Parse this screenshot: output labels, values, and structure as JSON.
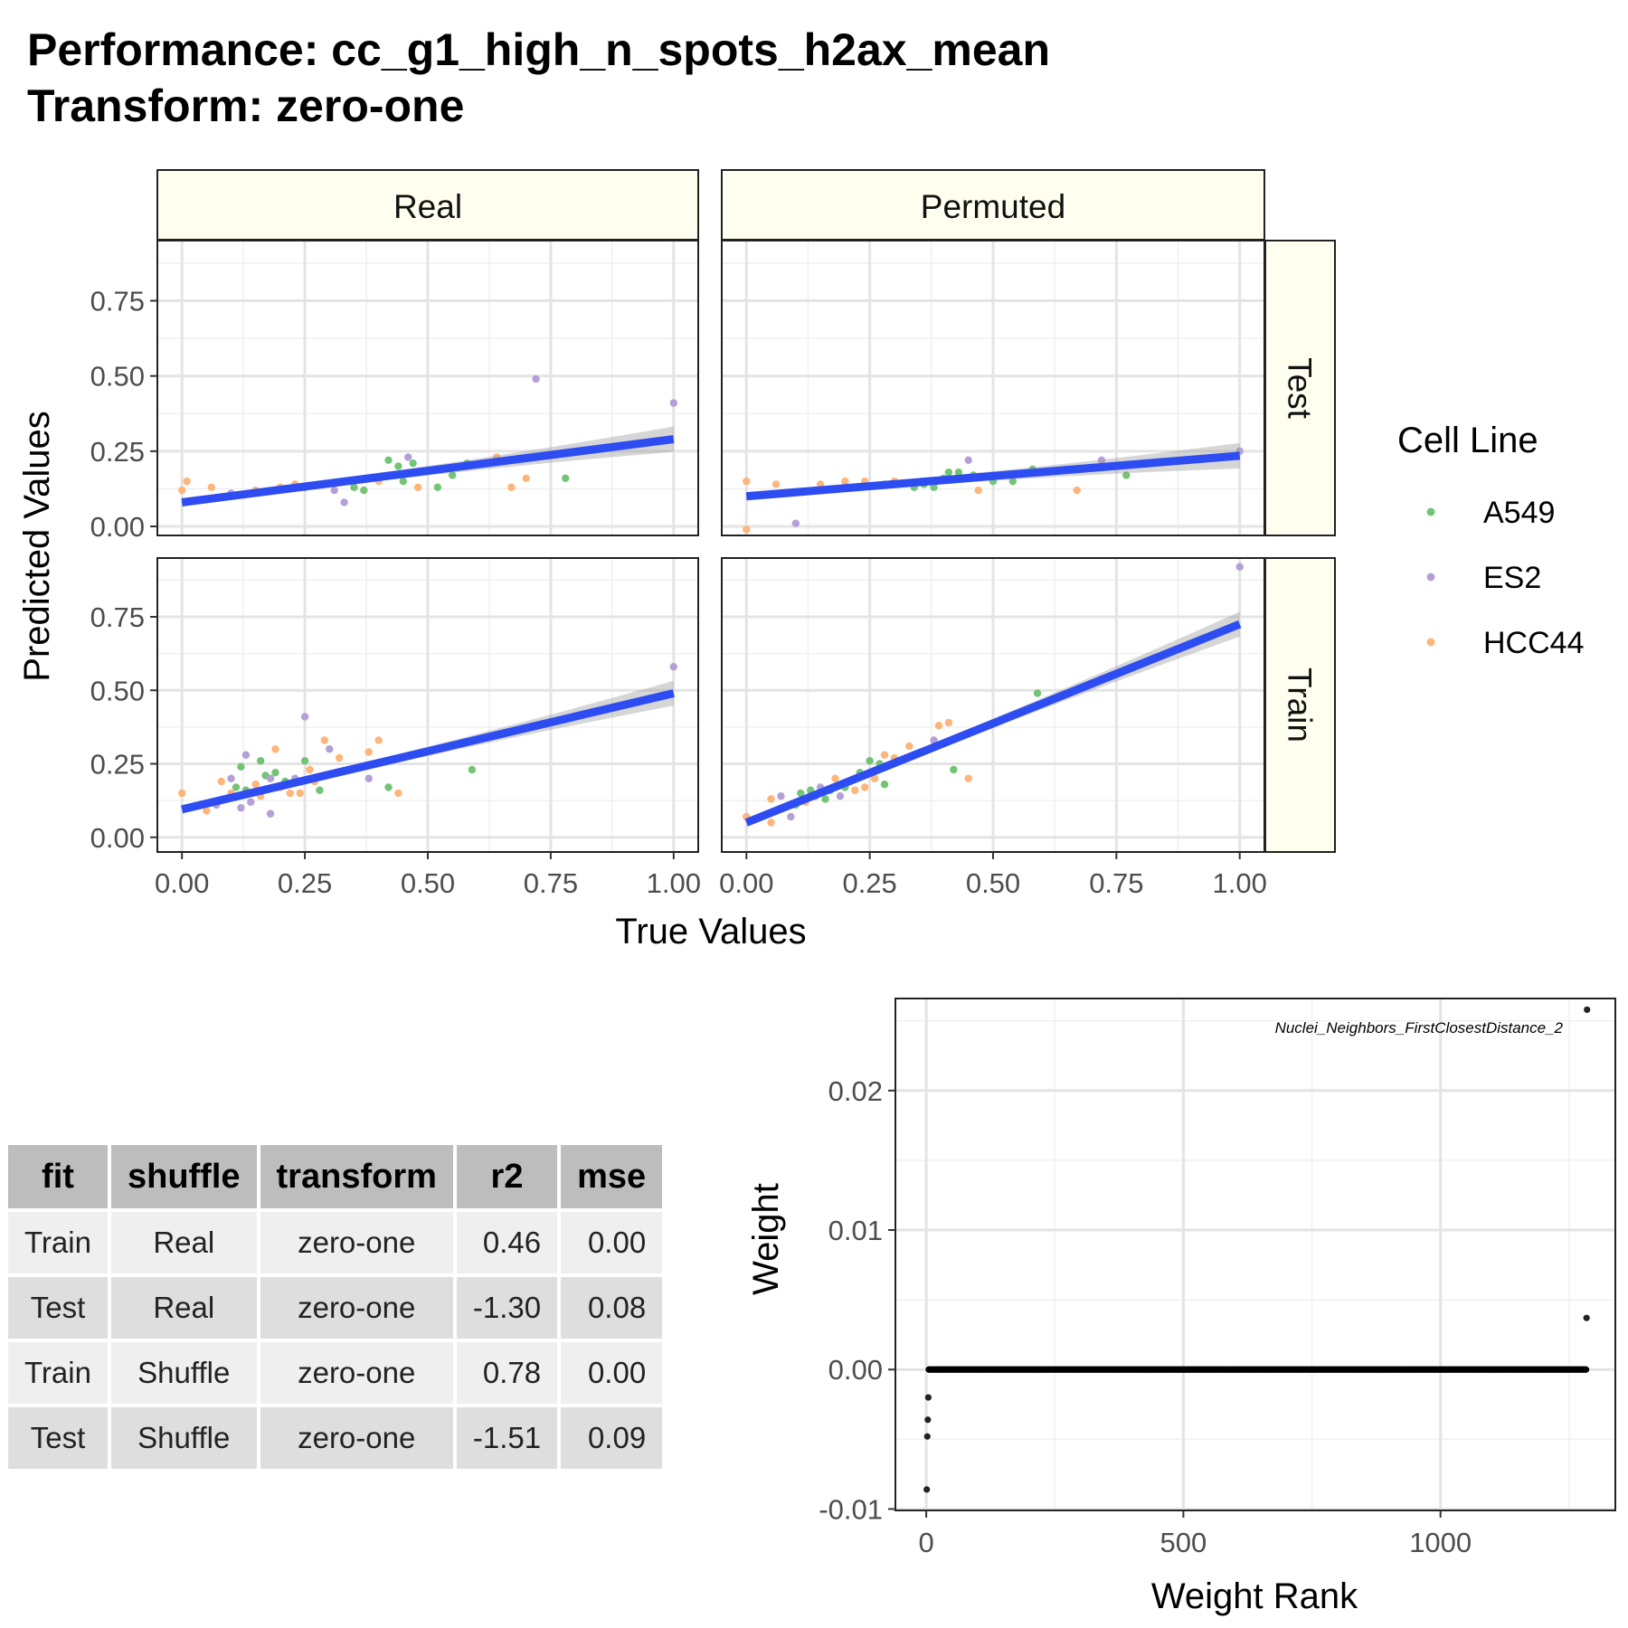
{
  "chart_data": [
    {
      "type": "scatter",
      "title": "Performance: cc_g1_high_n_spots_h2ax_mean",
      "subtitle": "Transform: zero-one",
      "xlabel": "True Values",
      "ylabel": "Predicted Values",
      "facet_columns": [
        "Real",
        "Permuted"
      ],
      "facet_rows": [
        "Test",
        "Train"
      ],
      "xlim": [
        -0.05,
        1.05
      ],
      "ylim_test": [
        -0.03,
        0.95
      ],
      "ylim_train": [
        -0.05,
        0.95
      ],
      "x_ticks": [
        "0.00",
        "0.25",
        "0.50",
        "0.75",
        "1.00"
      ],
      "y_ticks": [
        "0.00",
        "0.25",
        "0.50",
        "0.75"
      ],
      "legend": {
        "title": "Cell Line",
        "position": "right",
        "entries": [
          {
            "name": "A549",
            "color": "#74c476"
          },
          {
            "name": "ES2",
            "color": "#b4a0d6"
          },
          {
            "name": "HCC44",
            "color": "#fdb57a"
          }
        ]
      },
      "fit_line_color": "#2d4cf2",
      "grid": true,
      "panels": [
        {
          "col": "Real",
          "row": "Test",
          "fit": {
            "x": [
              0.0,
              1.0
            ],
            "y": [
              0.08,
              0.29
            ]
          },
          "points": [
            [
              0.0,
              0.12,
              "HCC44"
            ],
            [
              0.01,
              0.15,
              "HCC44"
            ],
            [
              0.06,
              0.13,
              "HCC44"
            ],
            [
              0.1,
              0.11,
              "ES2"
            ],
            [
              0.15,
              0.12,
              "HCC44"
            ],
            [
              0.2,
              0.13,
              "HCC44"
            ],
            [
              0.23,
              0.14,
              "HCC44"
            ],
            [
              0.25,
              0.13,
              "A549"
            ],
            [
              0.28,
              0.14,
              "HCC44"
            ],
            [
              0.31,
              0.12,
              "ES2"
            ],
            [
              0.33,
              0.08,
              "ES2"
            ],
            [
              0.35,
              0.13,
              "A549"
            ],
            [
              0.37,
              0.12,
              "A549"
            ],
            [
              0.4,
              0.15,
              "HCC44"
            ],
            [
              0.42,
              0.22,
              "A549"
            ],
            [
              0.44,
              0.2,
              "A549"
            ],
            [
              0.45,
              0.15,
              "A549"
            ],
            [
              0.46,
              0.23,
              "ES2"
            ],
            [
              0.47,
              0.21,
              "A549"
            ],
            [
              0.48,
              0.13,
              "HCC44"
            ],
            [
              0.52,
              0.13,
              "A549"
            ],
            [
              0.55,
              0.17,
              "A549"
            ],
            [
              0.58,
              0.21,
              "A549"
            ],
            [
              0.64,
              0.23,
              "HCC44"
            ],
            [
              0.67,
              0.13,
              "HCC44"
            ],
            [
              0.7,
              0.16,
              "HCC44"
            ],
            [
              0.72,
              0.49,
              "ES2"
            ],
            [
              0.78,
              0.16,
              "A549"
            ],
            [
              1.0,
              0.41,
              "ES2"
            ]
          ]
        },
        {
          "col": "Permuted",
          "row": "Test",
          "fit": {
            "x": [
              0.0,
              1.0
            ],
            "y": [
              0.1,
              0.235
            ]
          },
          "points": [
            [
              0.0,
              -0.01,
              "HCC44"
            ],
            [
              0.0,
              0.15,
              "HCC44"
            ],
            [
              0.06,
              0.14,
              "HCC44"
            ],
            [
              0.1,
              0.01,
              "ES2"
            ],
            [
              0.15,
              0.14,
              "HCC44"
            ],
            [
              0.2,
              0.15,
              "HCC44"
            ],
            [
              0.24,
              0.15,
              "HCC44"
            ],
            [
              0.28,
              0.14,
              "A549"
            ],
            [
              0.3,
              0.15,
              "HCC44"
            ],
            [
              0.34,
              0.13,
              "A549"
            ],
            [
              0.36,
              0.14,
              "A549"
            ],
            [
              0.38,
              0.13,
              "A549"
            ],
            [
              0.4,
              0.16,
              "A549"
            ],
            [
              0.41,
              0.18,
              "A549"
            ],
            [
              0.43,
              0.18,
              "A549"
            ],
            [
              0.45,
              0.22,
              "ES2"
            ],
            [
              0.46,
              0.17,
              "A549"
            ],
            [
              0.47,
              0.12,
              "HCC44"
            ],
            [
              0.5,
              0.15,
              "A549"
            ],
            [
              0.54,
              0.15,
              "A549"
            ],
            [
              0.58,
              0.19,
              "A549"
            ],
            [
              0.65,
              0.19,
              "HCC44"
            ],
            [
              0.67,
              0.12,
              "HCC44"
            ],
            [
              0.72,
              0.22,
              "ES2"
            ],
            [
              0.77,
              0.17,
              "A549"
            ],
            [
              1.0,
              0.25,
              "ES2"
            ]
          ]
        },
        {
          "col": "Real",
          "row": "Train",
          "fit": {
            "x": [
              0.0,
              1.0
            ],
            "y": [
              0.095,
              0.49
            ]
          },
          "points": [
            [
              0.0,
              0.15,
              "HCC44"
            ],
            [
              0.05,
              0.09,
              "HCC44"
            ],
            [
              0.07,
              0.11,
              "ES2"
            ],
            [
              0.08,
              0.19,
              "HCC44"
            ],
            [
              0.09,
              0.13,
              "HCC44"
            ],
            [
              0.1,
              0.15,
              "HCC44"
            ],
            [
              0.1,
              0.2,
              "ES2"
            ],
            [
              0.11,
              0.17,
              "A549"
            ],
            [
              0.12,
              0.24,
              "A549"
            ],
            [
              0.12,
              0.1,
              "ES2"
            ],
            [
              0.13,
              0.28,
              "ES2"
            ],
            [
              0.13,
              0.16,
              "A549"
            ],
            [
              0.14,
              0.12,
              "ES2"
            ],
            [
              0.15,
              0.18,
              "HCC44"
            ],
            [
              0.16,
              0.26,
              "A549"
            ],
            [
              0.16,
              0.14,
              "HCC44"
            ],
            [
              0.17,
              0.21,
              "A549"
            ],
            [
              0.18,
              0.08,
              "ES2"
            ],
            [
              0.18,
              0.2,
              "ES2"
            ],
            [
              0.19,
              0.22,
              "A549"
            ],
            [
              0.19,
              0.3,
              "HCC44"
            ],
            [
              0.2,
              0.17,
              "HCC44"
            ],
            [
              0.21,
              0.19,
              "A549"
            ],
            [
              0.22,
              0.15,
              "HCC44"
            ],
            [
              0.23,
              0.2,
              "ES2"
            ],
            [
              0.24,
              0.15,
              "HCC44"
            ],
            [
              0.25,
              0.26,
              "A549"
            ],
            [
              0.25,
              0.41,
              "ES2"
            ],
            [
              0.26,
              0.23,
              "HCC44"
            ],
            [
              0.27,
              0.19,
              "HCC44"
            ],
            [
              0.28,
              0.16,
              "A549"
            ],
            [
              0.29,
              0.33,
              "HCC44"
            ],
            [
              0.3,
              0.3,
              "ES2"
            ],
            [
              0.32,
              0.27,
              "HCC44"
            ],
            [
              0.38,
              0.2,
              "ES2"
            ],
            [
              0.38,
              0.29,
              "HCC44"
            ],
            [
              0.4,
              0.33,
              "HCC44"
            ],
            [
              0.42,
              0.17,
              "A549"
            ],
            [
              0.44,
              0.15,
              "HCC44"
            ],
            [
              0.59,
              0.23,
              "A549"
            ],
            [
              1.0,
              0.58,
              "ES2"
            ]
          ]
        },
        {
          "col": "Permuted",
          "row": "Train",
          "fit": {
            "x": [
              0.0,
              1.0
            ],
            "y": [
              0.05,
              0.725
            ]
          },
          "points": [
            [
              0.0,
              0.07,
              "HCC44"
            ],
            [
              0.05,
              0.05,
              "HCC44"
            ],
            [
              0.05,
              0.13,
              "HCC44"
            ],
            [
              0.07,
              0.14,
              "ES2"
            ],
            [
              0.09,
              0.07,
              "ES2"
            ],
            [
              0.1,
              0.11,
              "A549"
            ],
            [
              0.11,
              0.15,
              "A549"
            ],
            [
              0.12,
              0.12,
              "HCC44"
            ],
            [
              0.13,
              0.16,
              "A549"
            ],
            [
              0.14,
              0.14,
              "ES2"
            ],
            [
              0.15,
              0.17,
              "ES2"
            ],
            [
              0.16,
              0.13,
              "A549"
            ],
            [
              0.17,
              0.16,
              "A549"
            ],
            [
              0.18,
              0.2,
              "HCC44"
            ],
            [
              0.19,
              0.14,
              "ES2"
            ],
            [
              0.2,
              0.17,
              "A549"
            ],
            [
              0.21,
              0.19,
              "ES2"
            ],
            [
              0.22,
              0.16,
              "HCC44"
            ],
            [
              0.23,
              0.22,
              "A549"
            ],
            [
              0.24,
              0.17,
              "HCC44"
            ],
            [
              0.25,
              0.26,
              "A549"
            ],
            [
              0.26,
              0.2,
              "HCC44"
            ],
            [
              0.27,
              0.25,
              "A549"
            ],
            [
              0.28,
              0.18,
              "A549"
            ],
            [
              0.28,
              0.28,
              "HCC44"
            ],
            [
              0.3,
              0.27,
              "HCC44"
            ],
            [
              0.33,
              0.31,
              "HCC44"
            ],
            [
              0.38,
              0.33,
              "ES2"
            ],
            [
              0.39,
              0.38,
              "HCC44"
            ],
            [
              0.41,
              0.39,
              "HCC44"
            ],
            [
              0.42,
              0.23,
              "A549"
            ],
            [
              0.45,
              0.2,
              "HCC44"
            ],
            [
              0.59,
              0.49,
              "A549"
            ],
            [
              1.0,
              0.92,
              "ES2"
            ]
          ]
        }
      ]
    },
    {
      "type": "scatter",
      "xlabel": "Weight Rank",
      "ylabel": "Weight",
      "xlim": [
        -60,
        1340
      ],
      "ylim": [
        -0.0101,
        0.0266
      ],
      "x_ticks": [
        "0",
        "500",
        "1000"
      ],
      "y_ticks": [
        "-0.01",
        "0.00",
        "0.01",
        "0.02"
      ],
      "annotation": "Nuclei_Neighbors_FirstClosestDistance_2",
      "n_zero_weights": 1280,
      "nonzero_points": [
        [
          1,
          -0.0086
        ],
        [
          2,
          -0.0048
        ],
        [
          3,
          -0.0036
        ],
        [
          4,
          -0.002
        ],
        [
          1284,
          0.0037
        ],
        [
          1285,
          0.0258
        ]
      ],
      "point_color": "#222222",
      "grid": true
    },
    {
      "type": "table",
      "columns": [
        "fit",
        "shuffle",
        "transform",
        "r2",
        "mse"
      ],
      "rows": [
        [
          "Train",
          "Real",
          "zero-one",
          "0.46",
          "0.00"
        ],
        [
          "Test",
          "Real",
          "zero-one",
          "-1.30",
          "0.08"
        ],
        [
          "Train",
          "Shuffle",
          "zero-one",
          "0.78",
          "0.00"
        ],
        [
          "Test",
          "Shuffle",
          "zero-one",
          "-1.51",
          "0.09"
        ]
      ]
    }
  ]
}
